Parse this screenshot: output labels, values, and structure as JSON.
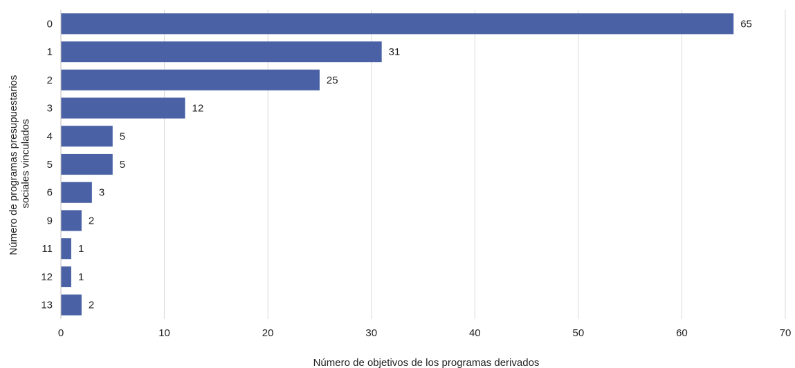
{
  "chart_data": {
    "type": "bar",
    "orientation": "horizontal",
    "categories": [
      "0",
      "1",
      "2",
      "3",
      "4",
      "5",
      "6",
      "9",
      "11",
      "12",
      "13"
    ],
    "values": [
      65,
      31,
      25,
      12,
      5,
      5,
      3,
      2,
      1,
      1,
      2
    ],
    "xlabel": "Número de objetivos de los programas derivados",
    "ylabel_lines": [
      "Número de programas presupuestarios",
      "sociales vinculados"
    ],
    "xlim": [
      0,
      70
    ],
    "xticks": [
      0,
      10,
      20,
      30,
      40,
      50,
      60,
      70
    ],
    "grid": "vertical",
    "bar_color": "#4a62a5",
    "data_labels": true
  }
}
